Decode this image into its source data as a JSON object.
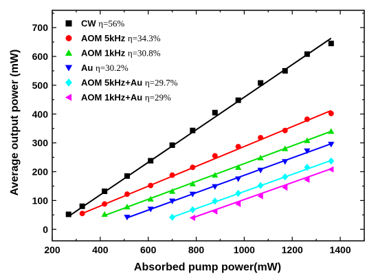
{
  "chart_data": {
    "type": "scatter",
    "xlabel": "Absorbed pump power(mW)",
    "ylabel": "Average output power (mW)",
    "xlim": [
      200,
      1500
    ],
    "ylim": [
      -40,
      760
    ],
    "xticks": [
      200,
      400,
      600,
      800,
      1000,
      1200,
      1400
    ],
    "yticks": [
      0,
      100,
      200,
      300,
      400,
      500,
      600,
      700
    ],
    "grid": false,
    "legend_position": "top-left",
    "series": [
      {
        "name": "CW",
        "eta": "η=56%",
        "color": "#000000",
        "marker": "square",
        "x": [
          268,
          325,
          418,
          512,
          610,
          700,
          785,
          878,
          975,
          1068,
          1170,
          1262,
          1362
        ],
        "y": [
          52,
          80,
          132,
          185,
          238,
          292,
          343,
          405,
          448,
          508,
          550,
          608,
          645
        ],
        "fit": [
          [
            268,
            45
          ],
          [
            1362,
            663
          ]
        ]
      },
      {
        "name": "AOM 5kHz",
        "eta": "η=34.3%",
        "color": "#ff0000",
        "marker": "circle",
        "x": [
          325,
          418,
          512,
          610,
          700,
          785,
          878,
          975,
          1068,
          1170,
          1262,
          1362
        ],
        "y": [
          55,
          88,
          122,
          152,
          188,
          215,
          255,
          287,
          318,
          343,
          382,
          402
        ],
        "fit": [
          [
            325,
            55
          ],
          [
            1362,
            412
          ]
        ]
      },
      {
        "name": "AOM 1kHz",
        "eta": "η=30.8%",
        "color": "#00e000",
        "marker": "triangle-up",
        "x": [
          418,
          512,
          610,
          700,
          785,
          878,
          975,
          1068,
          1170,
          1262,
          1362
        ],
        "y": [
          52,
          78,
          105,
          132,
          158,
          188,
          215,
          248,
          280,
          308,
          340
        ],
        "fit": [
          [
            418,
            48
          ],
          [
            1362,
            340
          ]
        ]
      },
      {
        "name": "Au",
        "eta": "η=30.2%",
        "color": "#0000ff",
        "marker": "triangle-down",
        "x": [
          512,
          610,
          700,
          785,
          878,
          975,
          1068,
          1170,
          1262,
          1362
        ],
        "y": [
          42,
          70,
          98,
          122,
          148,
          175,
          205,
          235,
          272,
          295
        ],
        "fit": [
          [
            512,
            40
          ],
          [
            1362,
            297
          ]
        ]
      },
      {
        "name": "AOM 5kHz+Au",
        "eta": "η=29.7%",
        "color": "#00ffff",
        "marker": "diamond",
        "x": [
          700,
          785,
          878,
          975,
          1068,
          1170,
          1262,
          1362
        ],
        "y": [
          42,
          68,
          98,
          125,
          152,
          182,
          215,
          237
        ],
        "fit": [
          [
            700,
            42
          ],
          [
            1362,
            239
          ]
        ]
      },
      {
        "name": "AOM 1kHz+Au",
        "eta": "η=29%",
        "color": "#ff00ff",
        "marker": "triangle-left",
        "x": [
          785,
          878,
          975,
          1068,
          1170,
          1262,
          1362
        ],
        "y": [
          40,
          62,
          88,
          115,
          145,
          172,
          208
        ],
        "fit": [
          [
            785,
            40
          ],
          [
            1362,
            210
          ]
        ]
      }
    ]
  }
}
